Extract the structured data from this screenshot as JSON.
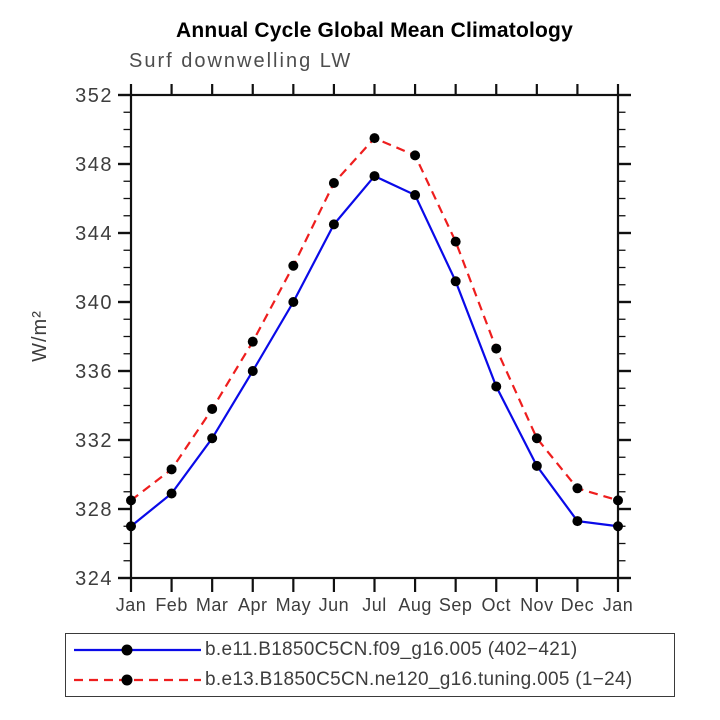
{
  "chart_data": {
    "type": "line",
    "title": "Annual Cycle Global Mean Climatology",
    "subtitle": "Surf downwelling LW",
    "ylabel": "W/m²",
    "xlabel": "",
    "categories": [
      "Jan",
      "Feb",
      "Mar",
      "Apr",
      "May",
      "Jun",
      "Jul",
      "Aug",
      "Sep",
      "Oct",
      "Nov",
      "Dec",
      "Jan"
    ],
    "ylim": [
      324,
      352
    ],
    "ytick_major": 4,
    "ytick_minor": 1,
    "grid": false,
    "legend_position": "bottom",
    "frame_color": "#111111",
    "series": [
      {
        "name": "b.e11.B1850C5CN.f09_g16.005 (402−421)",
        "color": "#0a0ae8",
        "style": "solid",
        "marker": "circle",
        "marker_color": "#000000",
        "values": [
          327.0,
          328.9,
          332.1,
          336.0,
          340.0,
          344.5,
          347.3,
          346.2,
          341.2,
          335.1,
          330.5,
          327.3,
          327.0
        ]
      },
      {
        "name": "b.e13.B1850C5CN.ne120_g16.tuning.005 (1−24)",
        "color": "#ee1e1e",
        "style": "dashed",
        "marker": "circle",
        "marker_color": "#000000",
        "values": [
          328.5,
          330.3,
          333.8,
          337.7,
          342.1,
          346.9,
          349.5,
          348.5,
          343.5,
          337.3,
          332.1,
          329.2,
          328.5
        ]
      }
    ]
  }
}
